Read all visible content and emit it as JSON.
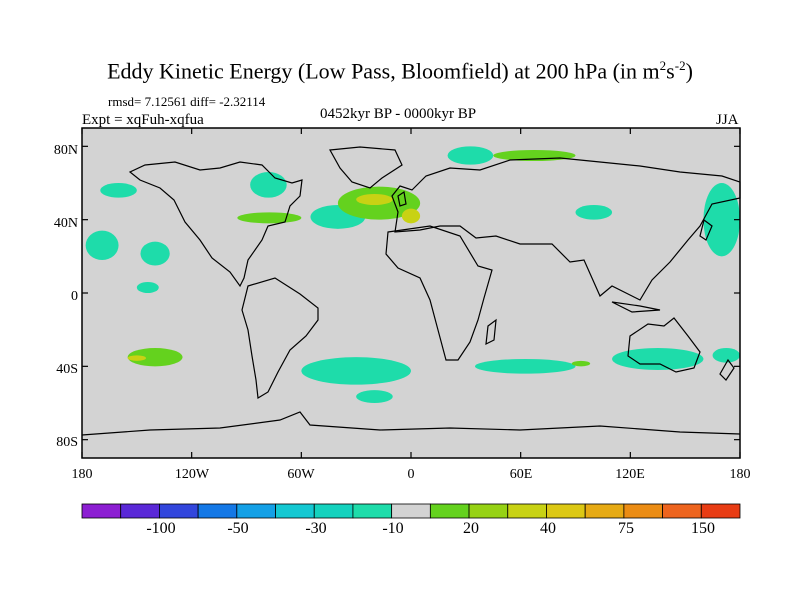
{
  "title": {
    "main": "Eddy Kinetic Energy (Low Pass, Bloomfield) at 200 hPa (in m",
    "sup1": "2",
    "mid": "s",
    "sup2": "-2",
    "end": ")"
  },
  "stats": "rmsd= 7.12561 diff= -2.32114",
  "expt": "Expt = xqFuh-xqfua",
  "period": "0452kyr BP - 0000kyr BP",
  "season": "JJA",
  "colors": {
    "ocean_land_fill": "#d3d3d3",
    "coast": "#000000"
  },
  "chart_data": {
    "type": "heatmap",
    "xlabel": "",
    "ylabel": "",
    "x_ticks": [
      "180",
      "120W",
      "60W",
      "0",
      "60E",
      "120E",
      "180"
    ],
    "y_ticks": [
      "80N",
      "40N",
      "0",
      "40S",
      "80S"
    ],
    "xlim": [
      -180,
      180
    ],
    "ylim": [
      -90,
      90
    ],
    "colorbar": {
      "labels": [
        "-100",
        "-50",
        "-30",
        "-10",
        "20",
        "40",
        "75",
        "150"
      ],
      "colors": [
        "#8c1ed2",
        "#5a28d7",
        "#3246dc",
        "#1478e6",
        "#14a0e6",
        "#14c8d2",
        "#14d2be",
        "#1edcaa",
        "#d3d3d3",
        "#64d21e",
        "#96d214",
        "#c8d214",
        "#dcc814",
        "#e6aa14",
        "#eb8c14",
        "#ed641e",
        "#e83c14"
      ]
    },
    "regions": [
      {
        "level": "-10..-5",
        "color": "#1edcaa",
        "lon": [
          -170,
          -150
        ],
        "lat": [
          52,
          60
        ]
      },
      {
        "level": "-10..-5",
        "color": "#1edcaa",
        "lon": [
          -88,
          -68
        ],
        "lat": [
          52,
          66
        ]
      },
      {
        "level": "-10..-5",
        "color": "#1edcaa",
        "lon": [
          -55,
          -25
        ],
        "lat": [
          35,
          48
        ]
      },
      {
        "level": "-10..-5",
        "color": "#1edcaa",
        "lon": [
          -178,
          -160
        ],
        "lat": [
          18,
          34
        ]
      },
      {
        "level": "-10..-5",
        "color": "#1edcaa",
        "lon": [
          -148,
          -132
        ],
        "lat": [
          15,
          28
        ]
      },
      {
        "level": "-10..-5",
        "color": "#1edcaa",
        "lon": [
          -150,
          -138
        ],
        "lat": [
          0,
          6
        ]
      },
      {
        "level": "-10..-5",
        "color": "#1edcaa",
        "lon": [
          -60,
          0
        ],
        "lat": [
          -50,
          -35
        ]
      },
      {
        "level": "-10..-5",
        "color": "#1edcaa",
        "lon": [
          -30,
          -10
        ],
        "lat": [
          -60,
          -53
        ]
      },
      {
        "level": "-10..-5",
        "color": "#1edcaa",
        "lon": [
          35,
          90
        ],
        "lat": [
          -44,
          -36
        ]
      },
      {
        "level": "-10..-5",
        "color": "#1edcaa",
        "lon": [
          110,
          160
        ],
        "lat": [
          -42,
          -30
        ]
      },
      {
        "level": "-10..-5",
        "color": "#1edcaa",
        "lon": [
          165,
          180
        ],
        "lat": [
          -38,
          -30
        ]
      },
      {
        "level": "-10..-5",
        "color": "#1edcaa",
        "lon": [
          160,
          180
        ],
        "lat": [
          20,
          60
        ]
      },
      {
        "level": "-10..-5",
        "color": "#1edcaa",
        "lon": [
          90,
          110
        ],
        "lat": [
          40,
          48
        ]
      },
      {
        "level": "-10..-5",
        "color": "#1edcaa",
        "lon": [
          20,
          45
        ],
        "lat": [
          70,
          80
        ]
      },
      {
        "level": "10..20",
        "color": "#64d21e",
        "lon": [
          -155,
          -125
        ],
        "lat": [
          -40,
          -30
        ]
      },
      {
        "level": "10..20",
        "color": "#64d21e",
        "lon": [
          -40,
          5
        ],
        "lat": [
          40,
          58
        ]
      },
      {
        "level": "10..20",
        "color": "#64d21e",
        "lon": [
          -95,
          -60
        ],
        "lat": [
          38,
          44
        ]
      },
      {
        "level": "10..20",
        "color": "#64d21e",
        "lon": [
          45,
          90
        ],
        "lat": [
          72,
          78
        ]
      },
      {
        "level": "10..20",
        "color": "#64d21e",
        "lon": [
          88,
          98
        ],
        "lat": [
          -40,
          -37
        ]
      },
      {
        "level": "20..30",
        "color": "#c8d214",
        "lon": [
          -30,
          -10
        ],
        "lat": [
          48,
          54
        ]
      },
      {
        "level": "20..30",
        "color": "#c8d214",
        "lon": [
          -155,
          -145
        ],
        "lat": [
          -37,
          -34
        ]
      },
      {
        "level": "20..30",
        "color": "#c8d214",
        "lon": [
          -5,
          5
        ],
        "lat": [
          38,
          46
        ]
      }
    ]
  }
}
